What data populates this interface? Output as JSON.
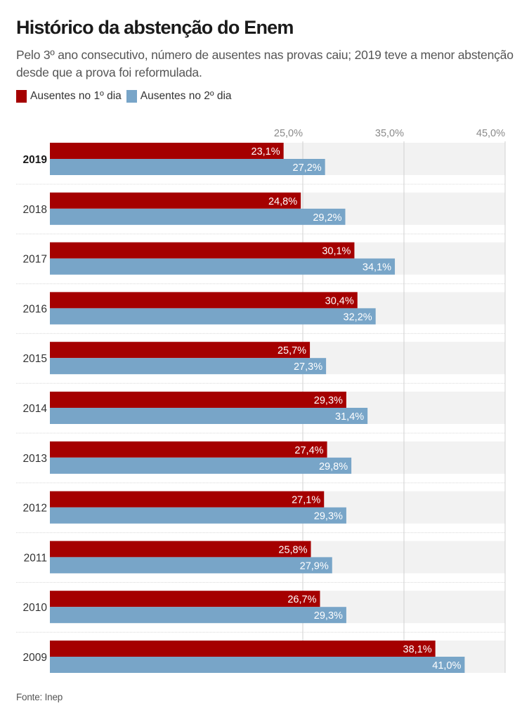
{
  "header": {
    "title": "Histórico da abstenção do Enem",
    "subtitle": "Pelo 3º ano consecutivo, número de ausentes nas provas caiu; 2019 teve a menor abstenção desde que a prova foi reformulada."
  },
  "legend": [
    {
      "label": "Ausentes no 1º dia",
      "color": "#a50000"
    },
    {
      "label": "Ausentes no 2º dia",
      "color": "#78a5c8"
    }
  ],
  "footer": {
    "source": "Fonte: Inep"
  },
  "colors": {
    "day1": "#a50000",
    "day2": "#78a5c8",
    "band": "#f2f2f2",
    "grid": "#d0d0d0"
  },
  "chart_data": {
    "type": "bar",
    "orientation": "horizontal",
    "title": "Histórico da abstenção do Enem",
    "subtitle": "Pelo 3º ano consecutivo, número de ausentes nas provas caiu; 2019 teve a menor abstenção desde que a prova foi reformulada.",
    "xlabel": "",
    "ylabel": "",
    "xlim": [
      0,
      45
    ],
    "x_ticks": [
      25,
      35,
      45
    ],
    "x_tick_labels": [
      "25,0%",
      "35,0%",
      "45,0%"
    ],
    "grid": true,
    "legend_position": "top-left",
    "highlighted_category": "2019",
    "categories": [
      "2019",
      "2018",
      "2017",
      "2016",
      "2015",
      "2014",
      "2013",
      "2012",
      "2011",
      "2010",
      "2009"
    ],
    "series": [
      {
        "name": "Ausentes no 1º dia",
        "color": "#a50000",
        "values": [
          23.1,
          24.8,
          30.1,
          30.4,
          25.7,
          29.3,
          27.4,
          27.1,
          25.8,
          26.7,
          38.1
        ],
        "labels": [
          "23,1%",
          "24,8%",
          "30,1%",
          "30,4%",
          "25,7%",
          "29,3%",
          "27,4%",
          "27,1%",
          "25,8%",
          "26,7%",
          "38,1%"
        ]
      },
      {
        "name": "Ausentes no 2º dia",
        "color": "#78a5c8",
        "values": [
          27.2,
          29.2,
          34.1,
          32.2,
          27.3,
          31.4,
          29.8,
          29.3,
          27.9,
          29.3,
          41.0
        ],
        "labels": [
          "27,2%",
          "29,2%",
          "34,1%",
          "32,2%",
          "27,3%",
          "31,4%",
          "29,8%",
          "29,3%",
          "27,9%",
          "29,3%",
          "41,0%"
        ]
      }
    ]
  }
}
